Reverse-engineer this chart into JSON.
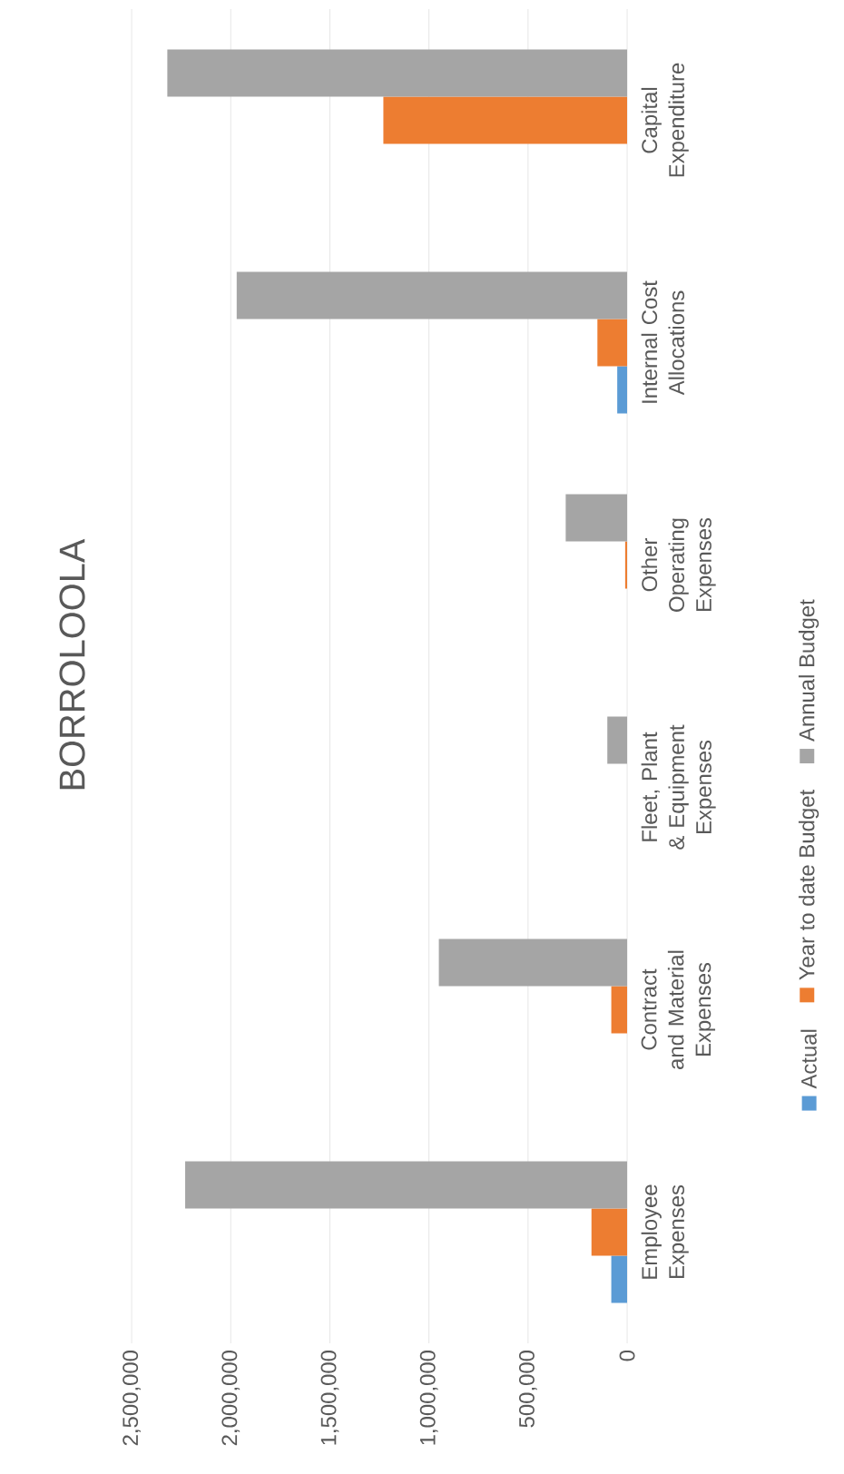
{
  "chart_data": {
    "type": "bar",
    "orientation": "horizontal",
    "title": "BORROLOOLA",
    "categories": [
      "Capital Expenditure",
      "Internal Cost Allocations",
      "Other Operating Expenses",
      "Fleet, Plant & Equipment Expenses",
      "Contract and Material Expenses",
      "Employee Expenses"
    ],
    "series": [
      {
        "name": "Actual",
        "color": "#5b9bd5",
        "values": [
          0,
          50000,
          0,
          0,
          0,
          80000
        ]
      },
      {
        "name": "Year to date Budget",
        "color": "#ed7d31",
        "values": [
          1230000,
          150000,
          10000,
          0,
          80000,
          180000
        ]
      },
      {
        "name": "Annual Budget",
        "color": "#a5a5a5",
        "values": [
          2320000,
          1970000,
          310000,
          100000,
          950000,
          2230000
        ]
      }
    ],
    "xlim": [
      2500000,
      0
    ],
    "xticks": [
      {
        "value": 0,
        "label": "0"
      },
      {
        "value": 500000,
        "label": "500,000"
      },
      {
        "value": 1000000,
        "label": "1,000,000"
      },
      {
        "value": 1500000,
        "label": "1,500,000"
      },
      {
        "value": 2000000,
        "label": "2,000,000"
      },
      {
        "value": 2500000,
        "label": "2,500,000"
      }
    ],
    "grid": "x",
    "legend": "right"
  }
}
